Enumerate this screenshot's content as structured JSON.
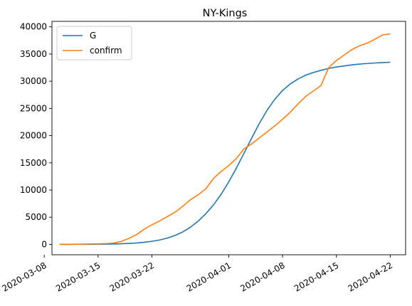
{
  "chart_data": {
    "type": "line",
    "title": "NY-Kings",
    "xlabel": "",
    "ylabel": "",
    "x_start": "2020-03-10",
    "x_tick_labels": [
      "2020-03-08",
      "2020-03-15",
      "2020-03-22",
      "2020-04-01",
      "2020-04-08",
      "2020-04-15",
      "2020-04-22"
    ],
    "x_tick_dates": [
      "2020-03-08",
      "2020-03-15",
      "2020-03-22",
      "2020-04-01",
      "2020-04-08",
      "2020-04-15",
      "2020-04-22"
    ],
    "xlim": [
      "2020-03-09",
      "2020-04-24"
    ],
    "y_ticks": [
      0,
      5000,
      10000,
      15000,
      20000,
      25000,
      30000,
      35000,
      40000
    ],
    "y_tick_labels": [
      "0",
      "5000",
      "10000",
      "15000",
      "20000",
      "25000",
      "30000",
      "35000",
      "40000"
    ],
    "ylim": [
      -1900,
      41000
    ],
    "grid": false,
    "legend": "top-left",
    "series": [
      {
        "name": "G",
        "color": "#1f77b4",
        "x": [
          "2020-03-10",
          "2020-03-11",
          "2020-03-12",
          "2020-03-13",
          "2020-03-14",
          "2020-03-15",
          "2020-03-16",
          "2020-03-17",
          "2020-03-18",
          "2020-03-19",
          "2020-03-20",
          "2020-03-21",
          "2020-03-22",
          "2020-03-23",
          "2020-03-24",
          "2020-03-25",
          "2020-03-26",
          "2020-03-27",
          "2020-03-28",
          "2020-03-29",
          "2020-03-30",
          "2020-03-31",
          "2020-04-01",
          "2020-04-02",
          "2020-04-03",
          "2020-04-04",
          "2020-04-05",
          "2020-04-06",
          "2020-04-07",
          "2020-04-08",
          "2020-04-09",
          "2020-04-10",
          "2020-04-11",
          "2020-04-12",
          "2020-04-13",
          "2020-04-14",
          "2020-04-15",
          "2020-04-16",
          "2020-04-17",
          "2020-04-18",
          "2020-04-19",
          "2020-04-20",
          "2020-04-21",
          "2020-04-22"
        ],
        "values": [
          5,
          8,
          12,
          18,
          26,
          38,
          56,
          85,
          125,
          185,
          270,
          395,
          570,
          815,
          1160,
          1640,
          2290,
          3150,
          4250,
          5620,
          7250,
          9200,
          11500,
          14050,
          16800,
          19600,
          22300,
          24700,
          26700,
          28300,
          29500,
          30400,
          31100,
          31600,
          32000,
          32350,
          32600,
          32800,
          33000,
          33150,
          33250,
          33350,
          33420,
          33480
        ]
      },
      {
        "name": "confirm",
        "color": "#ff7f0e",
        "x": [
          "2020-03-10",
          "2020-03-11",
          "2020-03-12",
          "2020-03-13",
          "2020-03-14",
          "2020-03-15",
          "2020-03-16",
          "2020-03-17",
          "2020-03-18",
          "2020-03-19",
          "2020-03-20",
          "2020-03-21",
          "2020-03-22",
          "2020-03-23",
          "2020-03-24",
          "2020-03-25",
          "2020-03-26",
          "2020-03-27",
          "2020-03-28",
          "2020-03-29",
          "2020-03-30",
          "2020-03-31",
          "2020-04-01",
          "2020-04-02",
          "2020-04-03",
          "2020-04-04",
          "2020-04-05",
          "2020-04-06",
          "2020-04-07",
          "2020-04-08",
          "2020-04-09",
          "2020-04-10",
          "2020-04-11",
          "2020-04-12",
          "2020-04-13",
          "2020-04-14",
          "2020-04-15",
          "2020-04-16",
          "2020-04-17",
          "2020-04-18",
          "2020-04-19",
          "2020-04-20",
          "2020-04-21",
          "2020-04-22"
        ],
        "values": [
          20,
          30,
          40,
          55,
          80,
          100,
          150,
          250,
          550,
          1100,
          1800,
          2800,
          3600,
          4300,
          5100,
          5900,
          7000,
          8200,
          9100,
          10200,
          12100,
          13400,
          14500,
          15800,
          17600,
          18500,
          19600,
          20700,
          21800,
          23000,
          24300,
          25800,
          27200,
          28200,
          29200,
          32500,
          33800,
          34800,
          35800,
          36500,
          37000,
          37700,
          38500,
          38700
        ]
      }
    ]
  }
}
